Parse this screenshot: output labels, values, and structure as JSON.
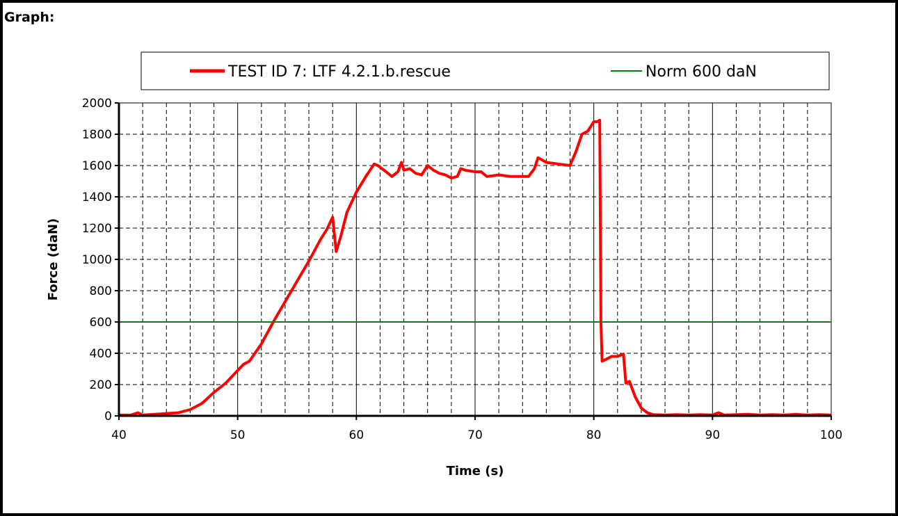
{
  "heading": "Graph:",
  "colors": {
    "series_test": "#ff0000",
    "series_norm": "#008000",
    "grid": "#000000",
    "frame": "#000000"
  },
  "chart_data": {
    "type": "line",
    "xlabel": "Time (s)",
    "ylabel": "Force (daN)",
    "xlim": [
      40,
      100
    ],
    "ylim": [
      0,
      2000
    ],
    "xticks": [
      40,
      50,
      60,
      70,
      80,
      90,
      100
    ],
    "yticks": [
      0,
      200,
      400,
      600,
      800,
      1000,
      1200,
      1400,
      1600,
      1800,
      2000
    ],
    "grid": true,
    "legend_position": "top",
    "series": [
      {
        "name": "TEST ID 7: LTF 4.2.1.b.rescue",
        "color": "#ff0000",
        "x": [
          40,
          41,
          41.6,
          42,
          43,
          44,
          45,
          46,
          47,
          48,
          49,
          50,
          50.5,
          51,
          52,
          53,
          54,
          55,
          56,
          57,
          57.5,
          58,
          58.3,
          58.7,
          59.2,
          60,
          60.8,
          61.5,
          61.8,
          62.5,
          63,
          63.5,
          63.8,
          64,
          64.5,
          65,
          65.5,
          66,
          66.5,
          67,
          67.5,
          68,
          68.5,
          68.8,
          69.2,
          70,
          70.5,
          71,
          72,
          73,
          74,
          74.5,
          75,
          75.3,
          76,
          77,
          78,
          78.5,
          79,
          79.5,
          80,
          80.3,
          80.5,
          80.6,
          80.7,
          81,
          81.5,
          82,
          82.5,
          82.7,
          83,
          83.5,
          84,
          84.5,
          85,
          86,
          87,
          88,
          89,
          90,
          90.5,
          91,
          92,
          93,
          94,
          95,
          96,
          97,
          98,
          99,
          100
        ],
        "y": [
          5,
          5,
          20,
          5,
          10,
          15,
          20,
          40,
          80,
          150,
          210,
          290,
          330,
          350,
          460,
          600,
          730,
          860,
          990,
          1130,
          1190,
          1270,
          1050,
          1150,
          1300,
          1430,
          1530,
          1610,
          1600,
          1560,
          1530,
          1560,
          1620,
          1570,
          1580,
          1550,
          1540,
          1600,
          1570,
          1550,
          1540,
          1520,
          1530,
          1580,
          1570,
          1560,
          1560,
          1530,
          1540,
          1530,
          1530,
          1530,
          1580,
          1650,
          1620,
          1610,
          1600,
          1690,
          1800,
          1820,
          1880,
          1880,
          1890,
          600,
          350,
          360,
          380,
          380,
          395,
          210,
          220,
          120,
          50,
          20,
          8,
          5,
          8,
          5,
          8,
          5,
          20,
          5,
          8,
          10,
          5,
          8,
          5,
          10,
          5,
          8,
          5
        ]
      },
      {
        "name": "Norm 600 daN",
        "color": "#008000",
        "x": [
          40,
          100
        ],
        "y": [
          600,
          600
        ]
      }
    ]
  }
}
